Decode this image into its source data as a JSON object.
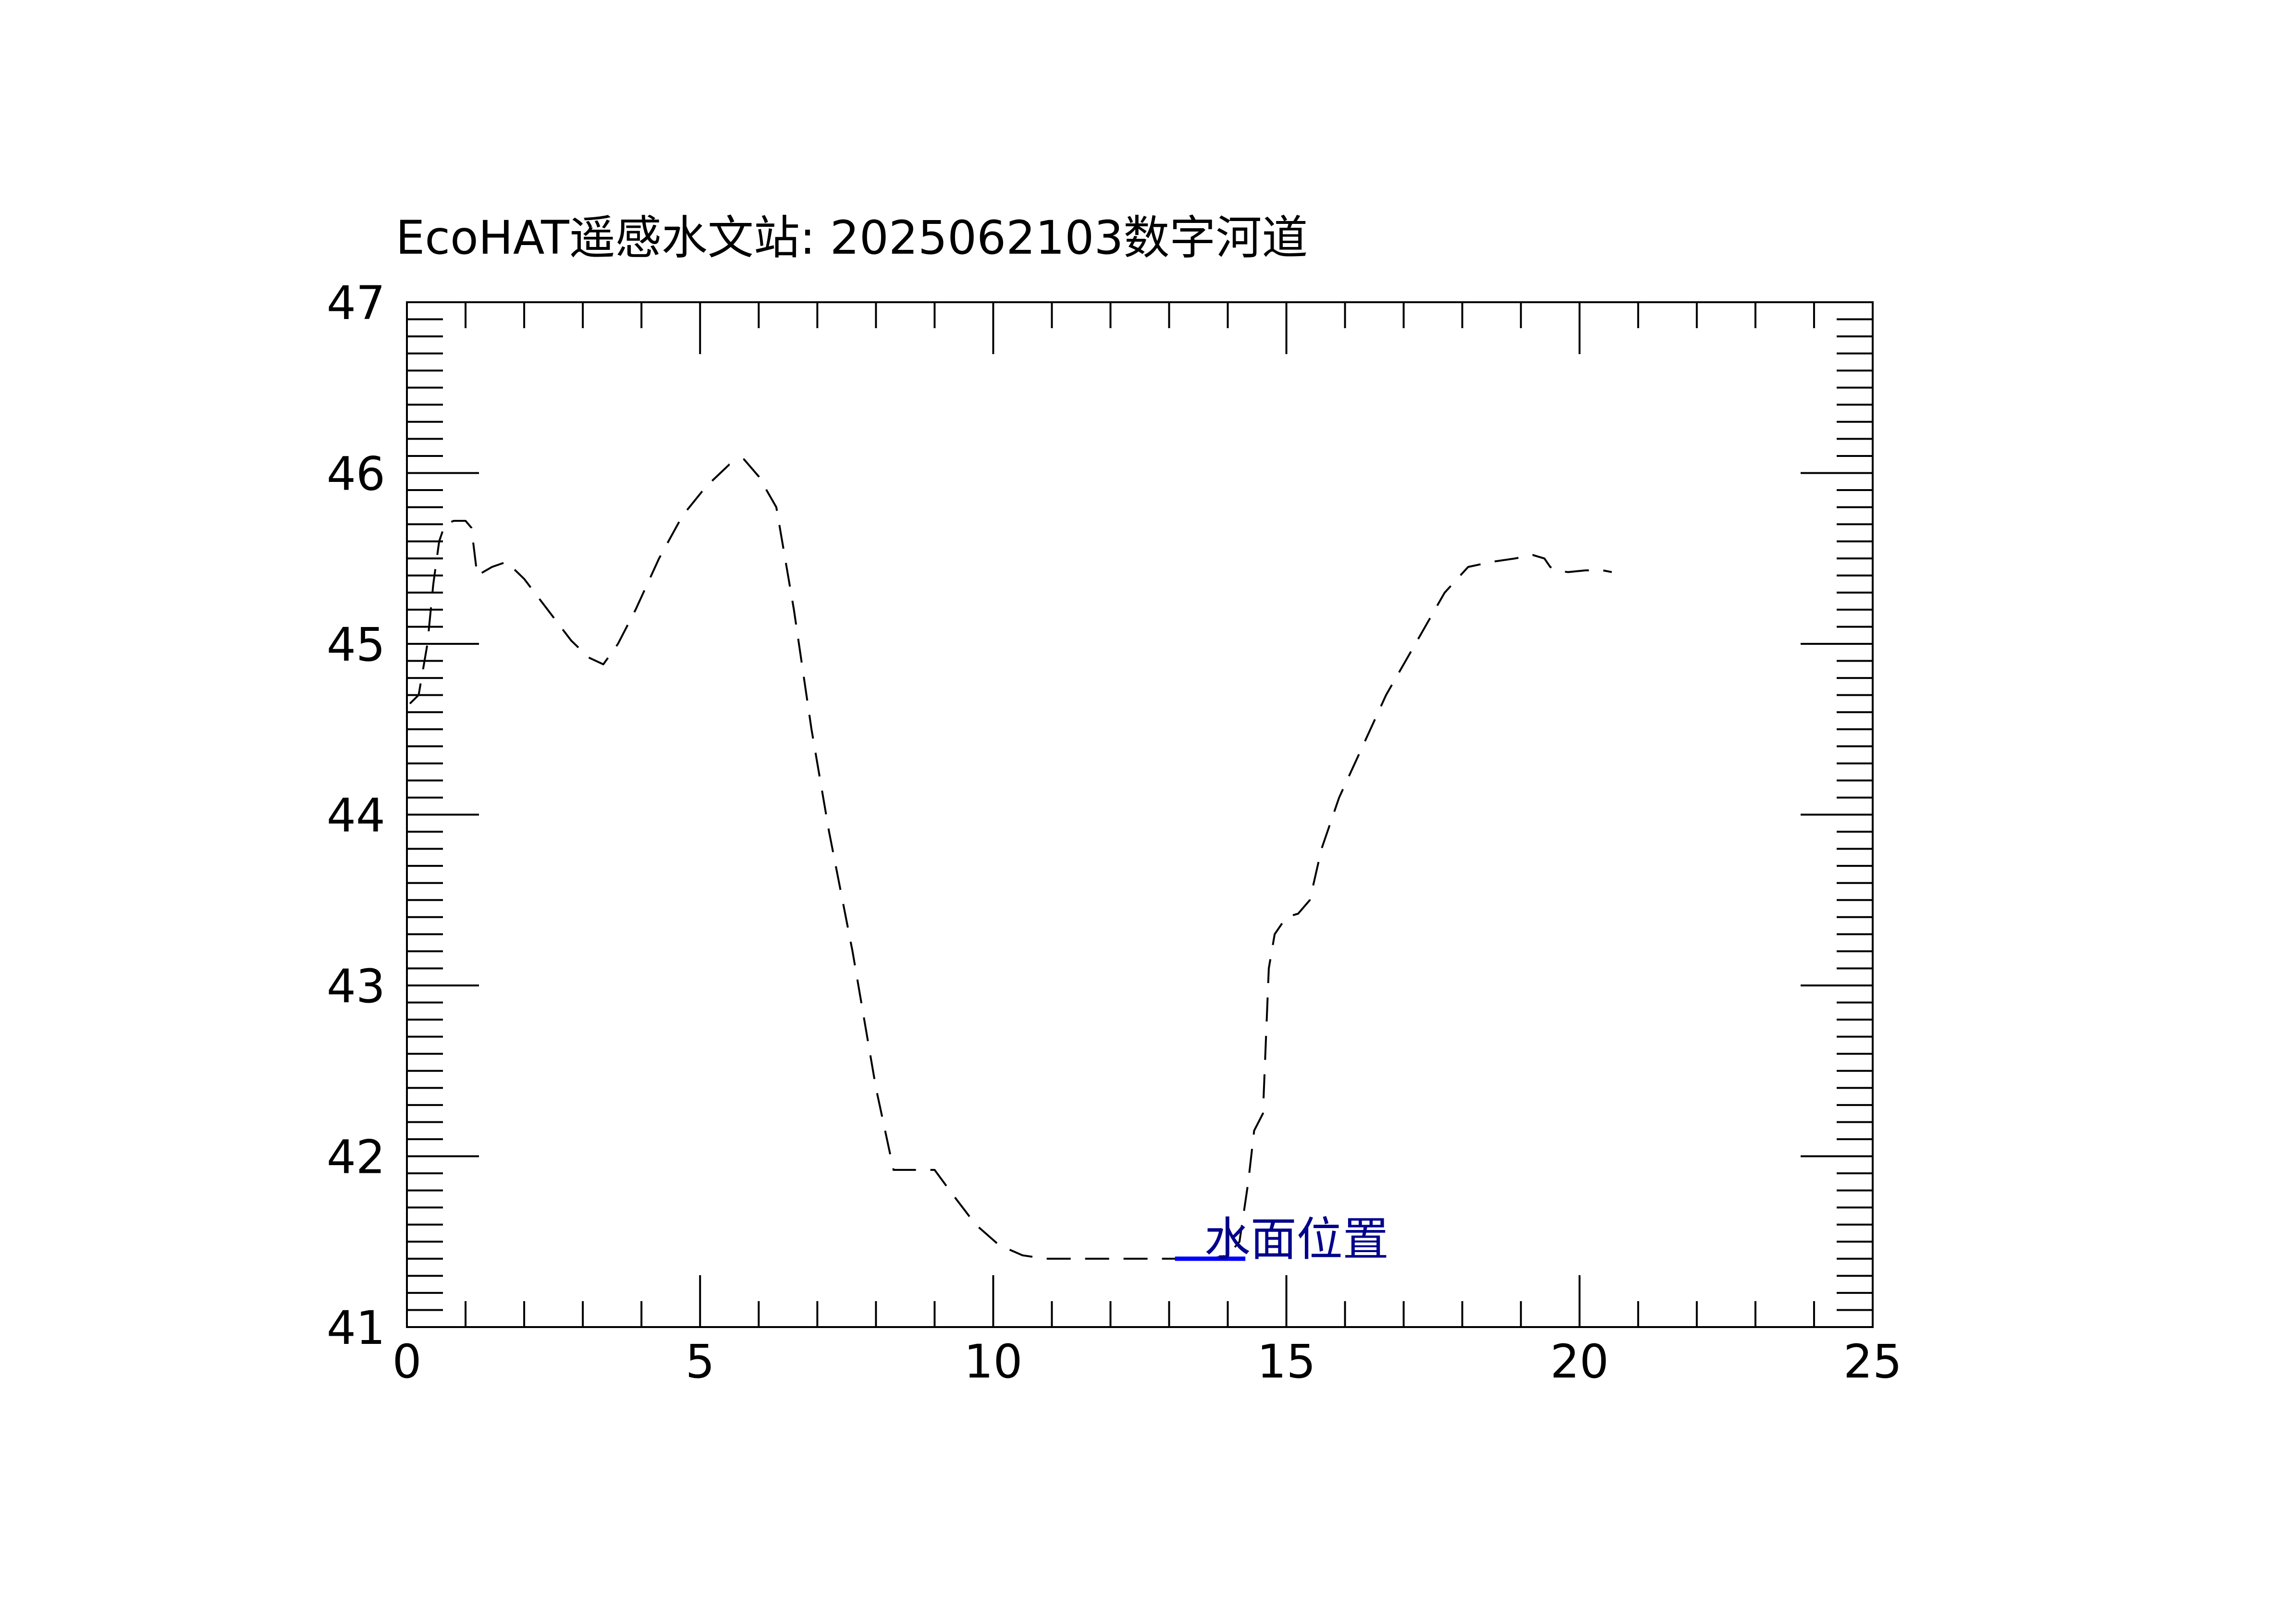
{
  "chart_data": {
    "type": "line",
    "title": "EcoHAT遥感水文站: 2025062103数字河道",
    "xlabel": "",
    "ylabel": "",
    "xlim": [
      0,
      25
    ],
    "ylim": [
      41,
      47
    ],
    "x_ticks": [
      0,
      5,
      10,
      15,
      20,
      25
    ],
    "y_ticks": [
      41,
      42,
      43,
      44,
      45,
      46,
      47
    ],
    "x_minor_step": 1,
    "y_minor_step": 0.1,
    "grid": false,
    "series": [
      {
        "line_style": "dashed",
        "color": "#000000",
        "x": [
          0.05,
          0.2,
          0.35,
          0.45,
          0.55,
          0.65,
          0.8,
          1.0,
          1.1,
          1.2,
          1.45,
          1.7,
          2.0,
          2.4,
          2.8,
          3.1,
          3.35,
          3.6,
          3.9,
          4.3,
          4.7,
          5.1,
          5.5,
          5.75,
          6.0,
          6.3,
          6.6,
          6.9,
          7.2,
          7.6,
          8.0,
          8.3,
          8.6,
          9.0,
          9.3,
          9.7,
          10.1,
          10.5,
          10.9,
          11.3,
          11.8,
          12.3,
          12.8,
          13.3,
          13.7,
          14.0,
          14.2,
          14.35,
          14.45,
          14.6,
          14.7,
          14.8,
          15.0,
          15.2,
          15.4,
          15.6,
          15.9,
          16.3,
          16.7,
          17.2,
          17.7,
          18.1,
          18.5,
          18.9,
          19.2,
          19.4,
          19.5,
          19.6,
          19.8,
          20.1,
          20.4,
          20.55
        ],
        "y": [
          44.65,
          44.7,
          45.0,
          45.35,
          45.6,
          45.7,
          45.72,
          45.72,
          45.68,
          45.4,
          45.45,
          45.48,
          45.38,
          45.2,
          45.02,
          44.92,
          44.88,
          45.0,
          45.2,
          45.5,
          45.75,
          45.92,
          46.05,
          46.08,
          45.98,
          45.8,
          45.2,
          44.5,
          43.9,
          43.2,
          42.4,
          41.92,
          41.92,
          41.92,
          41.78,
          41.6,
          41.48,
          41.42,
          41.4,
          41.4,
          41.4,
          41.4,
          41.4,
          41.4,
          41.4,
          41.42,
          41.5,
          41.85,
          42.15,
          42.25,
          43.1,
          43.3,
          43.4,
          43.42,
          43.5,
          43.8,
          44.1,
          44.4,
          44.7,
          45.0,
          45.3,
          45.45,
          45.48,
          45.5,
          45.52,
          45.5,
          45.45,
          45.43,
          45.42,
          45.43,
          45.43,
          45.42
        ]
      },
      {
        "line_style": "solid",
        "color": "#0000ff",
        "x": [
          13.1,
          14.3
        ],
        "y": [
          41.4,
          41.4
        ]
      }
    ],
    "annotations": [
      {
        "text": "水面位置",
        "x": 13.6,
        "y": 41.42,
        "color": "#00008b"
      }
    ]
  }
}
